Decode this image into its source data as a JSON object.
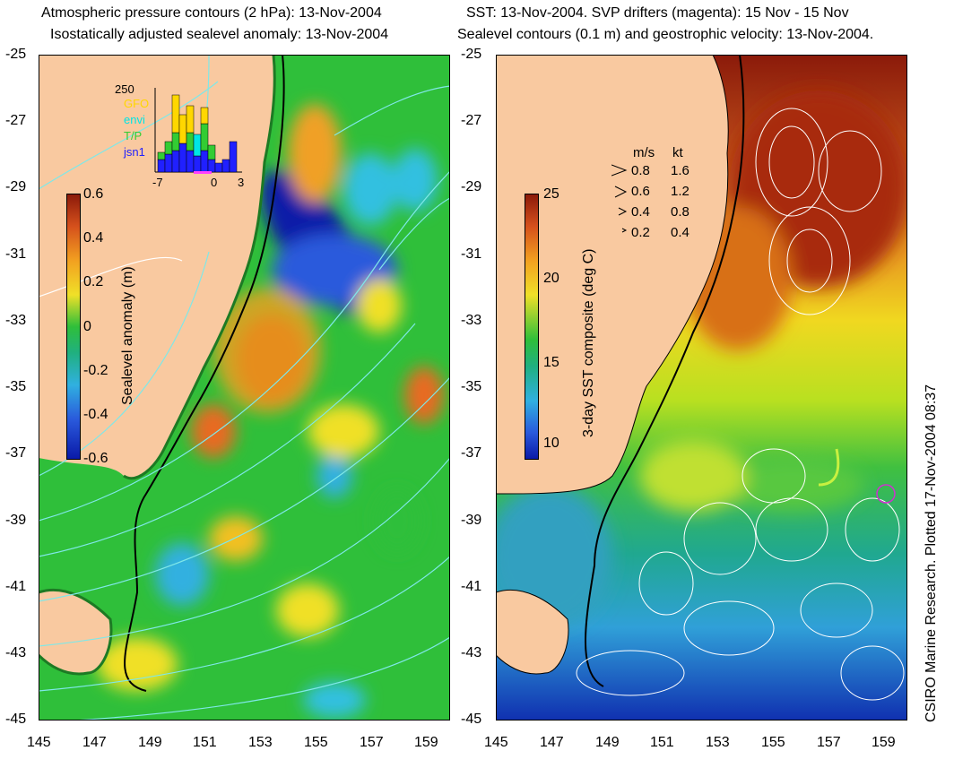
{
  "left_panel": {
    "title_line1": "Atmospheric pressure contours (2 hPa): 13-Nov-2004",
    "title_line2": "Isostatically adjusted sealevel anomaly: 13-Nov-2004",
    "colorbar": {
      "label": "Sealevel anomaly (m)",
      "ticks": [
        "0.6",
        "0.4",
        "0.2",
        "0",
        "-0.2",
        "-0.4",
        "-0.6"
      ]
    },
    "inset": {
      "top_value": "250",
      "legend": [
        {
          "name": "GFO",
          "color": "#ffd700"
        },
        {
          "name": "envi",
          "color": "#00e5e5"
        },
        {
          "name": "T/P",
          "color": "#33cc33"
        },
        {
          "name": "jsn1",
          "color": "#2020ff"
        }
      ],
      "xticks": [
        "-7",
        "0",
        "3"
      ]
    }
  },
  "right_panel": {
    "title_line1": "SST: 13-Nov-2004. SVP drifters (magenta): 15 Nov - 15 Nov",
    "title_line2": "Sealevel contours (0.1 m) and geostrophic velocity: 13-Nov-2004.",
    "colorbar": {
      "label": "3-day SST composite (deg C)",
      "ticks": [
        "25",
        "20",
        "15",
        "10"
      ]
    },
    "speed_key": {
      "header_ms": "m/s",
      "header_kt": "kt",
      "rows": [
        {
          "ms": "0.8",
          "kt": "1.6"
        },
        {
          "ms": "0.6",
          "kt": "1.2"
        },
        {
          "ms": "0.4",
          "kt": "0.8"
        },
        {
          "ms": "0.2",
          "kt": "0.4"
        }
      ]
    }
  },
  "axes": {
    "y_ticks": [
      "-25",
      "-27",
      "-29",
      "-31",
      "-33",
      "-35",
      "-37",
      "-39",
      "-41",
      "-43",
      "-45"
    ],
    "x_ticks": [
      "145",
      "147",
      "149",
      "151",
      "153",
      "155",
      "157",
      "159"
    ]
  },
  "credit": "CSIRO Marine Research. Plotted 17-Nov-2004 08:37",
  "colors": {
    "land": "#f9c9a0",
    "coast": "#000000",
    "sla_neg": "#0a1aa8",
    "sla_pos": "#b3421a",
    "sla_zero": "#2fbf3a",
    "sst_warm": "#8b1a0a",
    "sst_cool": "#1030b0"
  }
}
